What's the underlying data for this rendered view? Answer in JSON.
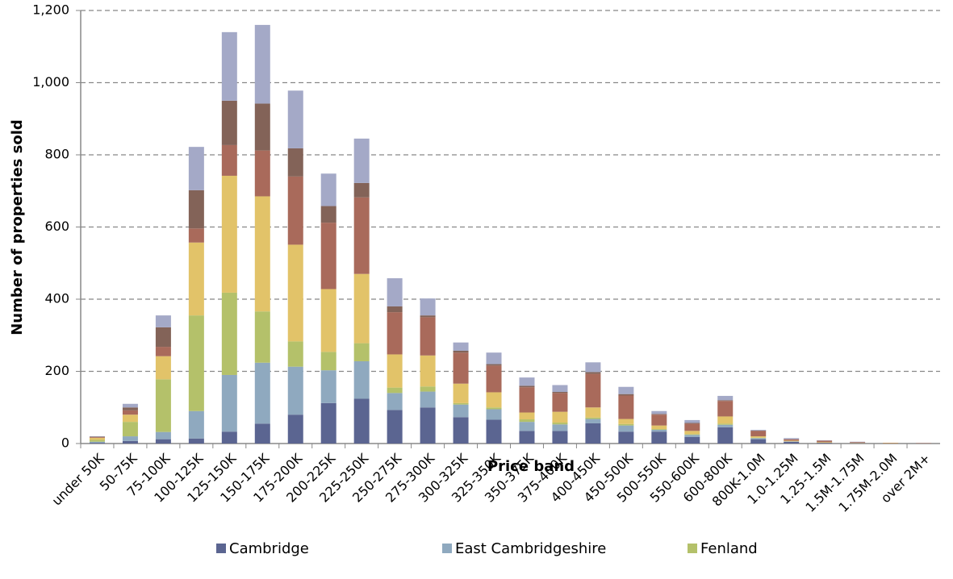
{
  "chart_data": {
    "type": "bar",
    "stacked": true,
    "grid": true,
    "y_label": "Number of properties sold",
    "x_label": "Price band",
    "categories": [
      "under 50K",
      "50-75K",
      "75-100K",
      "100-125K",
      "125-150K",
      "150-175K",
      "175-200K",
      "200-225K",
      "225-250K",
      "250-275K",
      "275-300K",
      "300-325K",
      "325-350K",
      "350-375K",
      "375-400K",
      "400-450K",
      "450-500K",
      "500-550K",
      "550-600K",
      "600-800K",
      "800K-1.0M",
      "1.0-1.25M",
      "1.25-1.5M",
      "1.5M-1.75M",
      "1.75M-2.0M",
      "over 2M+"
    ],
    "ylim": [
      0,
      1200
    ],
    "yticks": [
      0,
      200,
      400,
      600,
      800,
      {
        "value": 1000,
        "label": "1,000"
      },
      {
        "value": 1200,
        "label": "1,200"
      }
    ],
    "series": [
      {
        "name": "Cambridge",
        "color": "#5b6591",
        "values": [
          2,
          7,
          12,
          14,
          33,
          55,
          80,
          112,
          124,
          93,
          100,
          73,
          66,
          35,
          35,
          56,
          33,
          33,
          18,
          45,
          12,
          5,
          2,
          1,
          0,
          0
        ]
      },
      {
        "name": "East Cambridgeshire",
        "color": "#8fa9bf",
        "values": [
          3,
          13,
          20,
          76,
          157,
          169,
          133,
          91,
          104,
          47,
          44,
          35,
          29,
          25,
          18,
          12,
          17,
          5,
          6,
          7,
          3,
          1,
          0,
          0,
          0,
          0
        ]
      },
      {
        "name": "Fenland",
        "color": "#b4c16a",
        "values": [
          5,
          40,
          146,
          265,
          228,
          142,
          70,
          51,
          50,
          15,
          14,
          4,
          5,
          7,
          5,
          4,
          4,
          2,
          2,
          3,
          1,
          0,
          0,
          0,
          0,
          0
        ]
      },
      {
        "color": "#e2c369",
        "values": [
          6,
          20,
          64,
          202,
          324,
          319,
          268,
          174,
          192,
          92,
          86,
          54,
          42,
          19,
          30,
          28,
          14,
          10,
          9,
          20,
          4,
          2,
          2,
          1,
          1,
          0
        ]
      },
      {
        "color": "#a96a5b",
        "values": [
          2,
          12,
          26,
          39,
          85,
          127,
          189,
          184,
          212,
          117,
          106,
          86,
          74,
          70,
          52,
          93,
          65,
          30,
          20,
          43,
          15,
          4,
          4,
          2,
          1,
          1
        ]
      },
      {
        "color": "#836358",
        "values": [
          1,
          8,
          54,
          106,
          123,
          130,
          78,
          46,
          40,
          16,
          5,
          5,
          4,
          4,
          3,
          5,
          4,
          2,
          2,
          2,
          1,
          0,
          0,
          0,
          0,
          0
        ]
      },
      {
        "color": "#a4a9c7",
        "values": [
          1,
          10,
          33,
          120,
          190,
          218,
          160,
          90,
          123,
          78,
          47,
          23,
          32,
          23,
          19,
          27,
          20,
          8,
          8,
          12,
          2,
          3,
          1,
          1,
          0,
          0
        ]
      }
    ]
  }
}
